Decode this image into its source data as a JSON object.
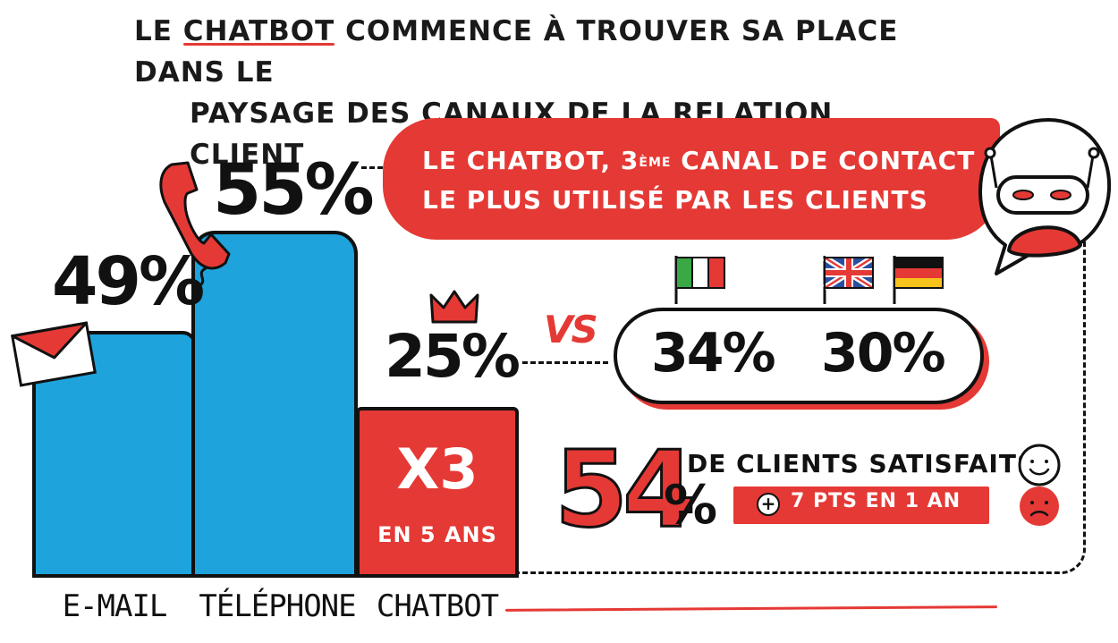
{
  "title": {
    "pre": "LE ",
    "highlight": "CHATBOT",
    "post": " COMMENCE À TROUVER SA PLACE DANS LE",
    "line2": "PAYSAGE DES CANAUX DE LA RELATION CLIENT"
  },
  "chart_data": {
    "type": "bar",
    "categories": [
      "E-MAIL",
      "TÉLÉPHONE",
      "CHATBOT"
    ],
    "values": [
      49,
      55,
      25
    ],
    "value_labels": [
      "49%",
      "55%",
      "25%"
    ],
    "ylim": [
      0,
      60
    ],
    "chatbot_growth": {
      "multiplier": "X3",
      "period": "EN 5 ANS"
    }
  },
  "callout": {
    "line1_pre": "LE CHATBOT, 3",
    "line1_sup": "ÈME",
    "line1_post": " CANAL DE CONTACT",
    "line2": "LE PLUS UTILISÉ PAR LES CLIENTS"
  },
  "comparison": {
    "vs_label": "VS",
    "items": [
      {
        "value": "34%",
        "flags": [
          "italy-flag"
        ]
      },
      {
        "value": "30%",
        "flags": [
          "uk-flag",
          "germany-flag"
        ]
      }
    ]
  },
  "satisfaction": {
    "value": "54",
    "unit": "%",
    "label": "DE CLIENTS SATISFAITS",
    "badge": "7 PTS EN 1 AN",
    "badge_sign": "+"
  },
  "colors": {
    "accent": "#e53935",
    "bar": "#1ea3dc",
    "ink": "#111111"
  },
  "icons": [
    "envelope-icon",
    "phone-icon",
    "crown-icon",
    "robot-icon",
    "smiley-icon",
    "sad-face-icon"
  ]
}
